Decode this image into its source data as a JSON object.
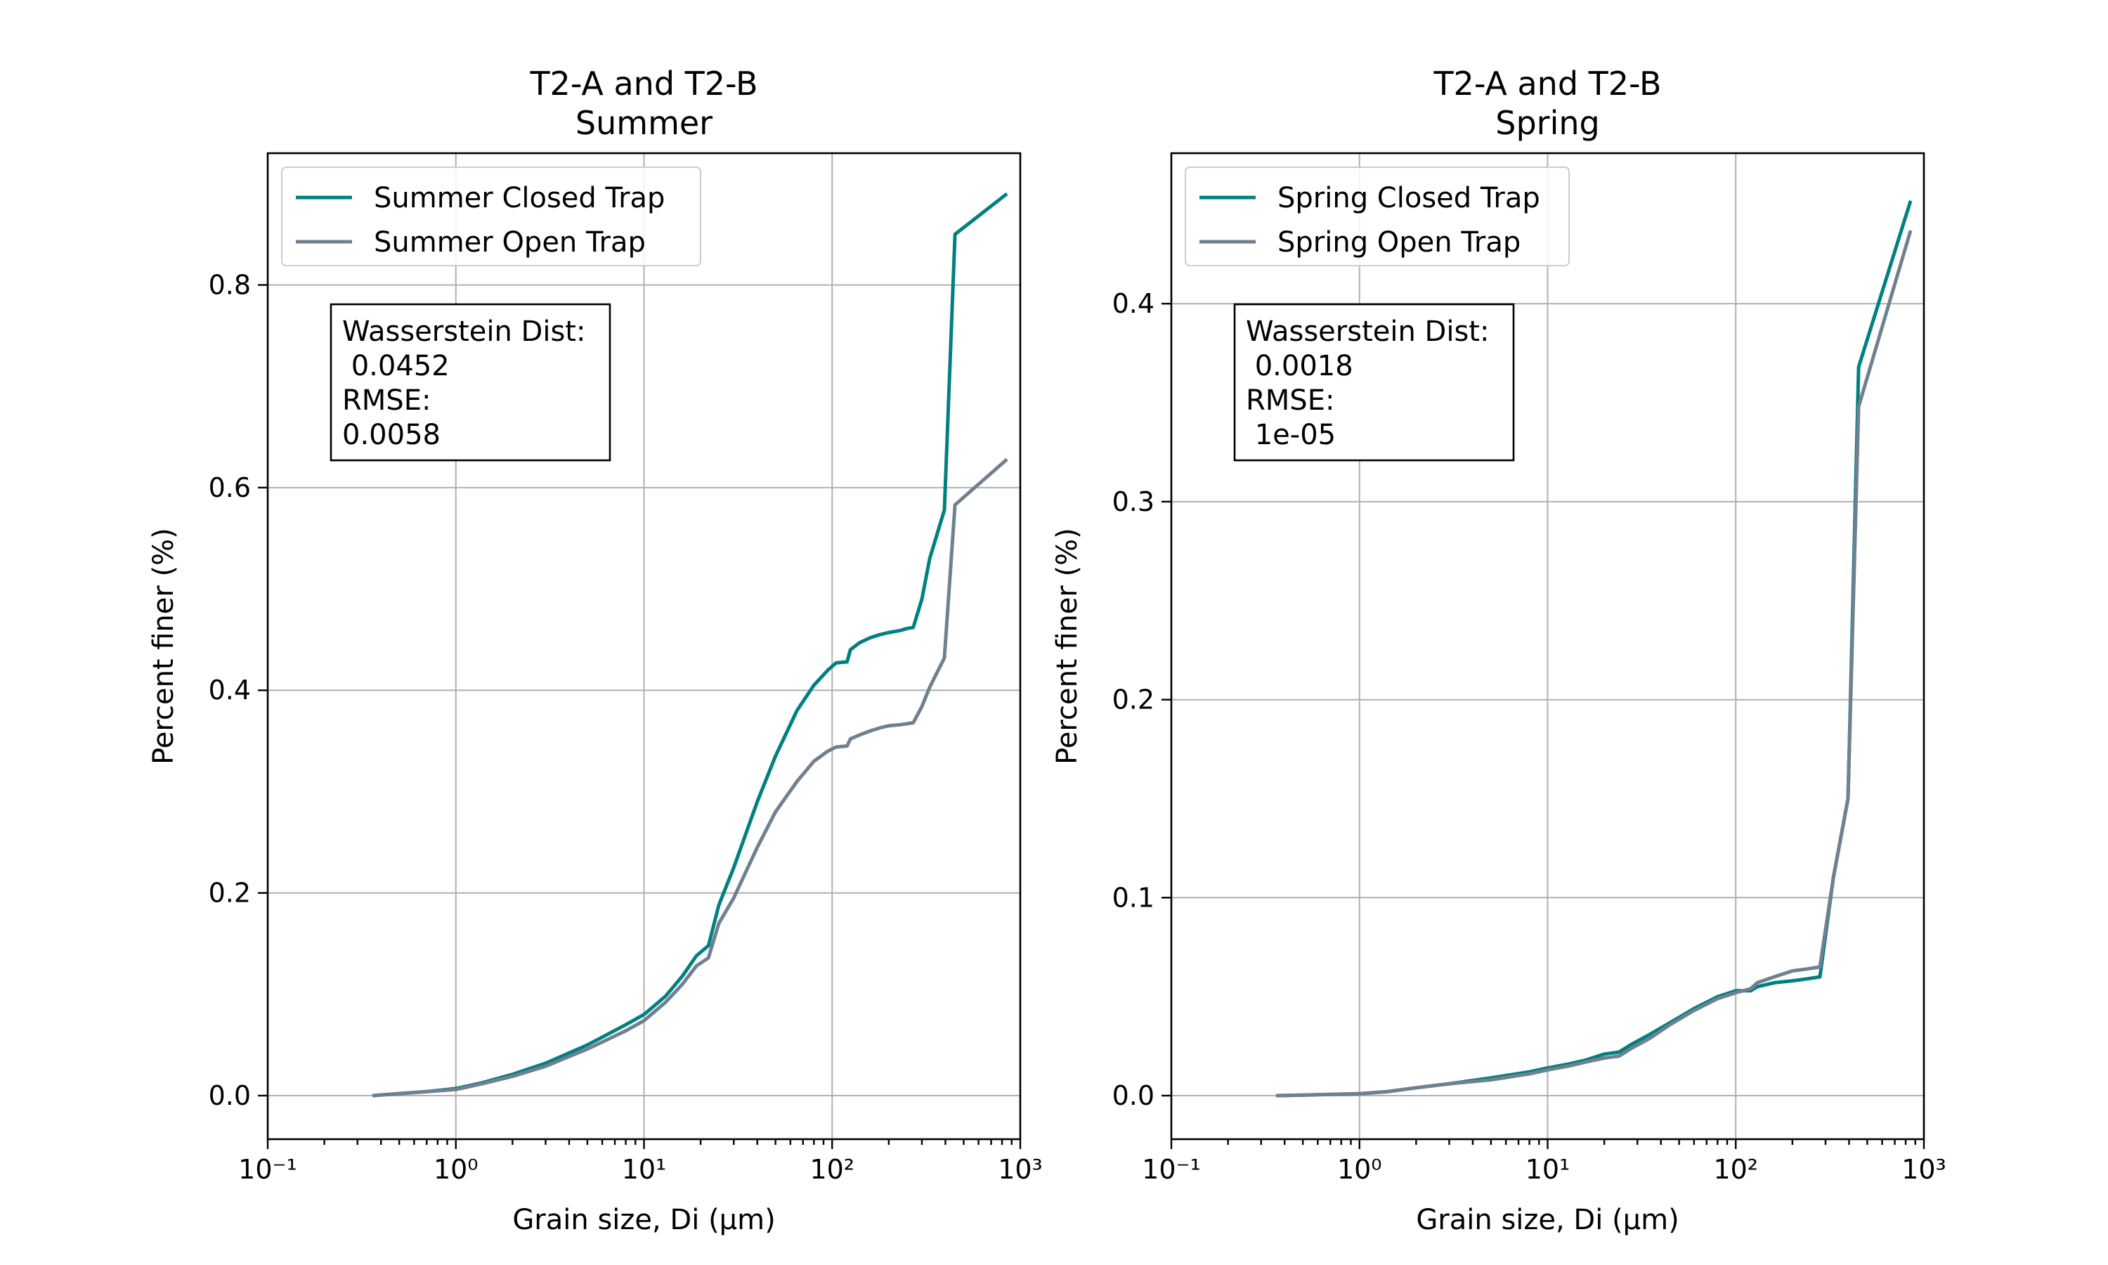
{
  "chart_data": [
    {
      "type": "line",
      "title": "T2-A and T2-B",
      "subtitle": "Summer",
      "xlabel": "Grain size, Di (μm)",
      "ylabel": "Percent finer (%)",
      "xscale": "log",
      "xlim": [
        0.1,
        1000
      ],
      "ylim": [
        -0.043,
        0.93
      ],
      "grid": true,
      "legend_position": "top-left",
      "x_tick_labels": [
        "10⁻¹",
        "10⁰",
        "10¹",
        "10²",
        "10³"
      ],
      "y_ticks": [
        0.0,
        0.2,
        0.4,
        0.6,
        0.8
      ],
      "y_tick_labels": [
        "0.0",
        "0.2",
        "0.4",
        "0.6",
        "0.8"
      ],
      "annotation": [
        "Wasserstein Dist:",
        " 0.0452",
        "RMSE:",
        "0.0058"
      ],
      "series": [
        {
          "name": "Summer Closed Trap",
          "color": "#008080",
          "x": [
            0.36,
            0.5,
            0.7,
            1.0,
            1.4,
            2.0,
            3.0,
            5.0,
            8.0,
            10.0,
            13.0,
            16.0,
            19.0,
            22.0,
            25.0,
            30.0,
            40.0,
            50.0,
            65.0,
            80.0,
            95.0,
            105.0,
            120.0,
            125.0,
            140.0,
            160.0,
            180.0,
            200.0,
            230.0,
            250.0,
            270.0,
            300.0,
            330.0,
            395.0,
            450.0,
            850.0
          ],
          "values": [
            0.0,
            0.002,
            0.004,
            0.007,
            0.013,
            0.021,
            0.032,
            0.05,
            0.07,
            0.08,
            0.098,
            0.118,
            0.138,
            0.148,
            0.188,
            0.225,
            0.29,
            0.335,
            0.38,
            0.405,
            0.42,
            0.427,
            0.428,
            0.44,
            0.447,
            0.452,
            0.455,
            0.457,
            0.459,
            0.461,
            0.462,
            0.49,
            0.53,
            0.578,
            0.85,
            0.89
          ]
        },
        {
          "name": "Summer Open Trap",
          "color": "#708090",
          "x": [
            0.36,
            0.5,
            0.7,
            1.0,
            1.4,
            2.0,
            3.0,
            5.0,
            8.0,
            10.0,
            13.0,
            16.0,
            19.0,
            22.0,
            25.0,
            30.0,
            40.0,
            50.0,
            65.0,
            80.0,
            95.0,
            105.0,
            120.0,
            125.0,
            140.0,
            160.0,
            180.0,
            200.0,
            230.0,
            250.0,
            270.0,
            300.0,
            330.0,
            395.0,
            450.0,
            850.0
          ],
          "values": [
            0.0,
            0.002,
            0.004,
            0.006,
            0.012,
            0.019,
            0.029,
            0.046,
            0.064,
            0.074,
            0.092,
            0.11,
            0.128,
            0.136,
            0.17,
            0.195,
            0.245,
            0.28,
            0.31,
            0.33,
            0.34,
            0.344,
            0.345,
            0.352,
            0.356,
            0.36,
            0.363,
            0.365,
            0.366,
            0.367,
            0.368,
            0.384,
            0.403,
            0.432,
            0.583,
            0.628
          ]
        }
      ]
    },
    {
      "type": "line",
      "title": "T2-A and T2-B",
      "subtitle": "Spring",
      "xlabel": "Grain size, Di (μm)",
      "ylabel": "Percent finer (%)",
      "xscale": "log",
      "xlim": [
        0.1,
        1000
      ],
      "ylim": [
        -0.022,
        0.476
      ],
      "grid": true,
      "legend_position": "top-left",
      "x_tick_labels": [
        "10⁻¹",
        "10⁰",
        "10¹",
        "10²",
        "10³"
      ],
      "y_ticks": [
        0.0,
        0.1,
        0.2,
        0.3,
        0.4
      ],
      "y_tick_labels": [
        "0.0",
        "0.1",
        "0.2",
        "0.3",
        "0.4"
      ],
      "annotation": [
        "Wasserstein Dist:",
        " 0.0018",
        "RMSE:",
        " 1e-05"
      ],
      "series": [
        {
          "name": "Spring Closed Trap",
          "color": "#008080",
          "x": [
            0.36,
            0.5,
            0.7,
            1.0,
            1.4,
            2.0,
            3.0,
            5.0,
            8.0,
            10.0,
            13.0,
            16.0,
            20.0,
            24.0,
            28.0,
            35.0,
            45.0,
            60.0,
            80.0,
            100.0,
            120.0,
            130.0,
            160.0,
            200.0,
            240.0,
            280.0,
            330.0,
            395.0,
            450.0,
            850.0
          ],
          "values": [
            0.0,
            0.0003,
            0.0006,
            0.001,
            0.002,
            0.004,
            0.006,
            0.009,
            0.012,
            0.014,
            0.016,
            0.018,
            0.021,
            0.022,
            0.026,
            0.031,
            0.037,
            0.044,
            0.05,
            0.053,
            0.053,
            0.055,
            0.057,
            0.058,
            0.059,
            0.06,
            0.11,
            0.15,
            0.368,
            0.452
          ]
        },
        {
          "name": "Spring Open Trap",
          "color": "#708090",
          "x": [
            0.36,
            0.5,
            0.7,
            1.0,
            1.4,
            2.0,
            3.0,
            5.0,
            8.0,
            10.0,
            13.0,
            16.0,
            20.0,
            24.0,
            28.0,
            35.0,
            45.0,
            60.0,
            80.0,
            100.0,
            120.0,
            130.0,
            160.0,
            200.0,
            240.0,
            280.0,
            330.0,
            395.0,
            450.0,
            850.0
          ],
          "values": [
            0.0,
            0.0003,
            0.0006,
            0.001,
            0.002,
            0.004,
            0.006,
            0.008,
            0.011,
            0.013,
            0.015,
            0.017,
            0.019,
            0.02,
            0.024,
            0.029,
            0.036,
            0.043,
            0.049,
            0.052,
            0.054,
            0.057,
            0.06,
            0.063,
            0.064,
            0.065,
            0.11,
            0.15,
            0.348,
            0.437
          ]
        }
      ]
    }
  ]
}
